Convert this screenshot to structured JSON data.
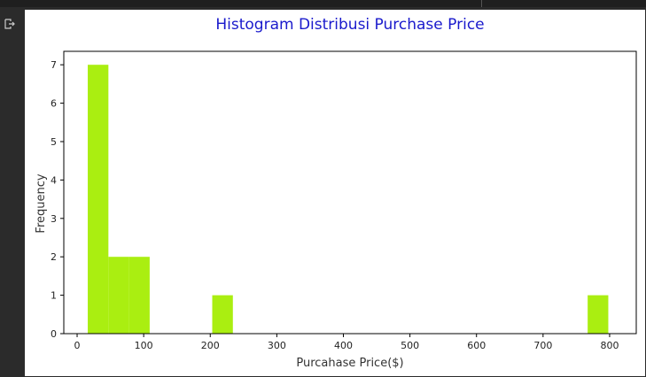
{
  "cell": {
    "output_icon": "output-redirect-icon"
  },
  "chart_data": {
    "type": "bar",
    "title": "Histogram Distribusi Purchase Price",
    "xlabel": "Purcahase Price($)",
    "ylabel": "Frequency",
    "xlim": [
      -20,
      840
    ],
    "ylim": [
      0,
      7.35
    ],
    "xticks": [
      0,
      100,
      200,
      300,
      400,
      500,
      600,
      700,
      800
    ],
    "yticks": [
      0,
      1,
      2,
      3,
      4,
      5,
      6,
      7
    ],
    "bar_color": "#aaee11",
    "title_color": "#1a1acc",
    "bins": [
      {
        "x0": 16,
        "x1": 47,
        "count": 7
      },
      {
        "x0": 47,
        "x1": 78,
        "count": 2
      },
      {
        "x0": 78,
        "x1": 109,
        "count": 2
      },
      {
        "x0": 203,
        "x1": 234,
        "count": 1
      },
      {
        "x0": 767,
        "x1": 798,
        "count": 1
      }
    ]
  }
}
